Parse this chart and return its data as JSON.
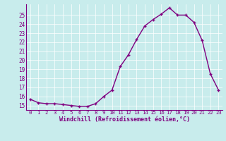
{
  "x": [
    0,
    1,
    2,
    3,
    4,
    5,
    6,
    7,
    8,
    9,
    10,
    11,
    12,
    13,
    14,
    15,
    16,
    17,
    18,
    19,
    20,
    21,
    22,
    23
  ],
  "y": [
    15.7,
    15.3,
    15.2,
    15.2,
    15.1,
    15.0,
    14.9,
    14.9,
    15.2,
    16.0,
    16.7,
    19.3,
    20.6,
    22.3,
    23.8,
    24.5,
    25.1,
    25.8,
    25.0,
    25.0,
    24.2,
    22.2,
    18.5,
    16.7
  ],
  "line_color": "#800080",
  "bg_color": "#c8ecec",
  "xlabel": "Windchill (Refroidissement éolien,°C)",
  "xlim": [
    -0.5,
    23.5
  ],
  "ylim": [
    14.5,
    26.2
  ],
  "yticks": [
    15,
    16,
    17,
    18,
    19,
    20,
    21,
    22,
    23,
    24,
    25
  ],
  "xticks": [
    0,
    1,
    2,
    3,
    4,
    5,
    6,
    7,
    8,
    9,
    10,
    11,
    12,
    13,
    14,
    15,
    16,
    17,
    18,
    19,
    20,
    21,
    22,
    23
  ],
  "marker": "+"
}
